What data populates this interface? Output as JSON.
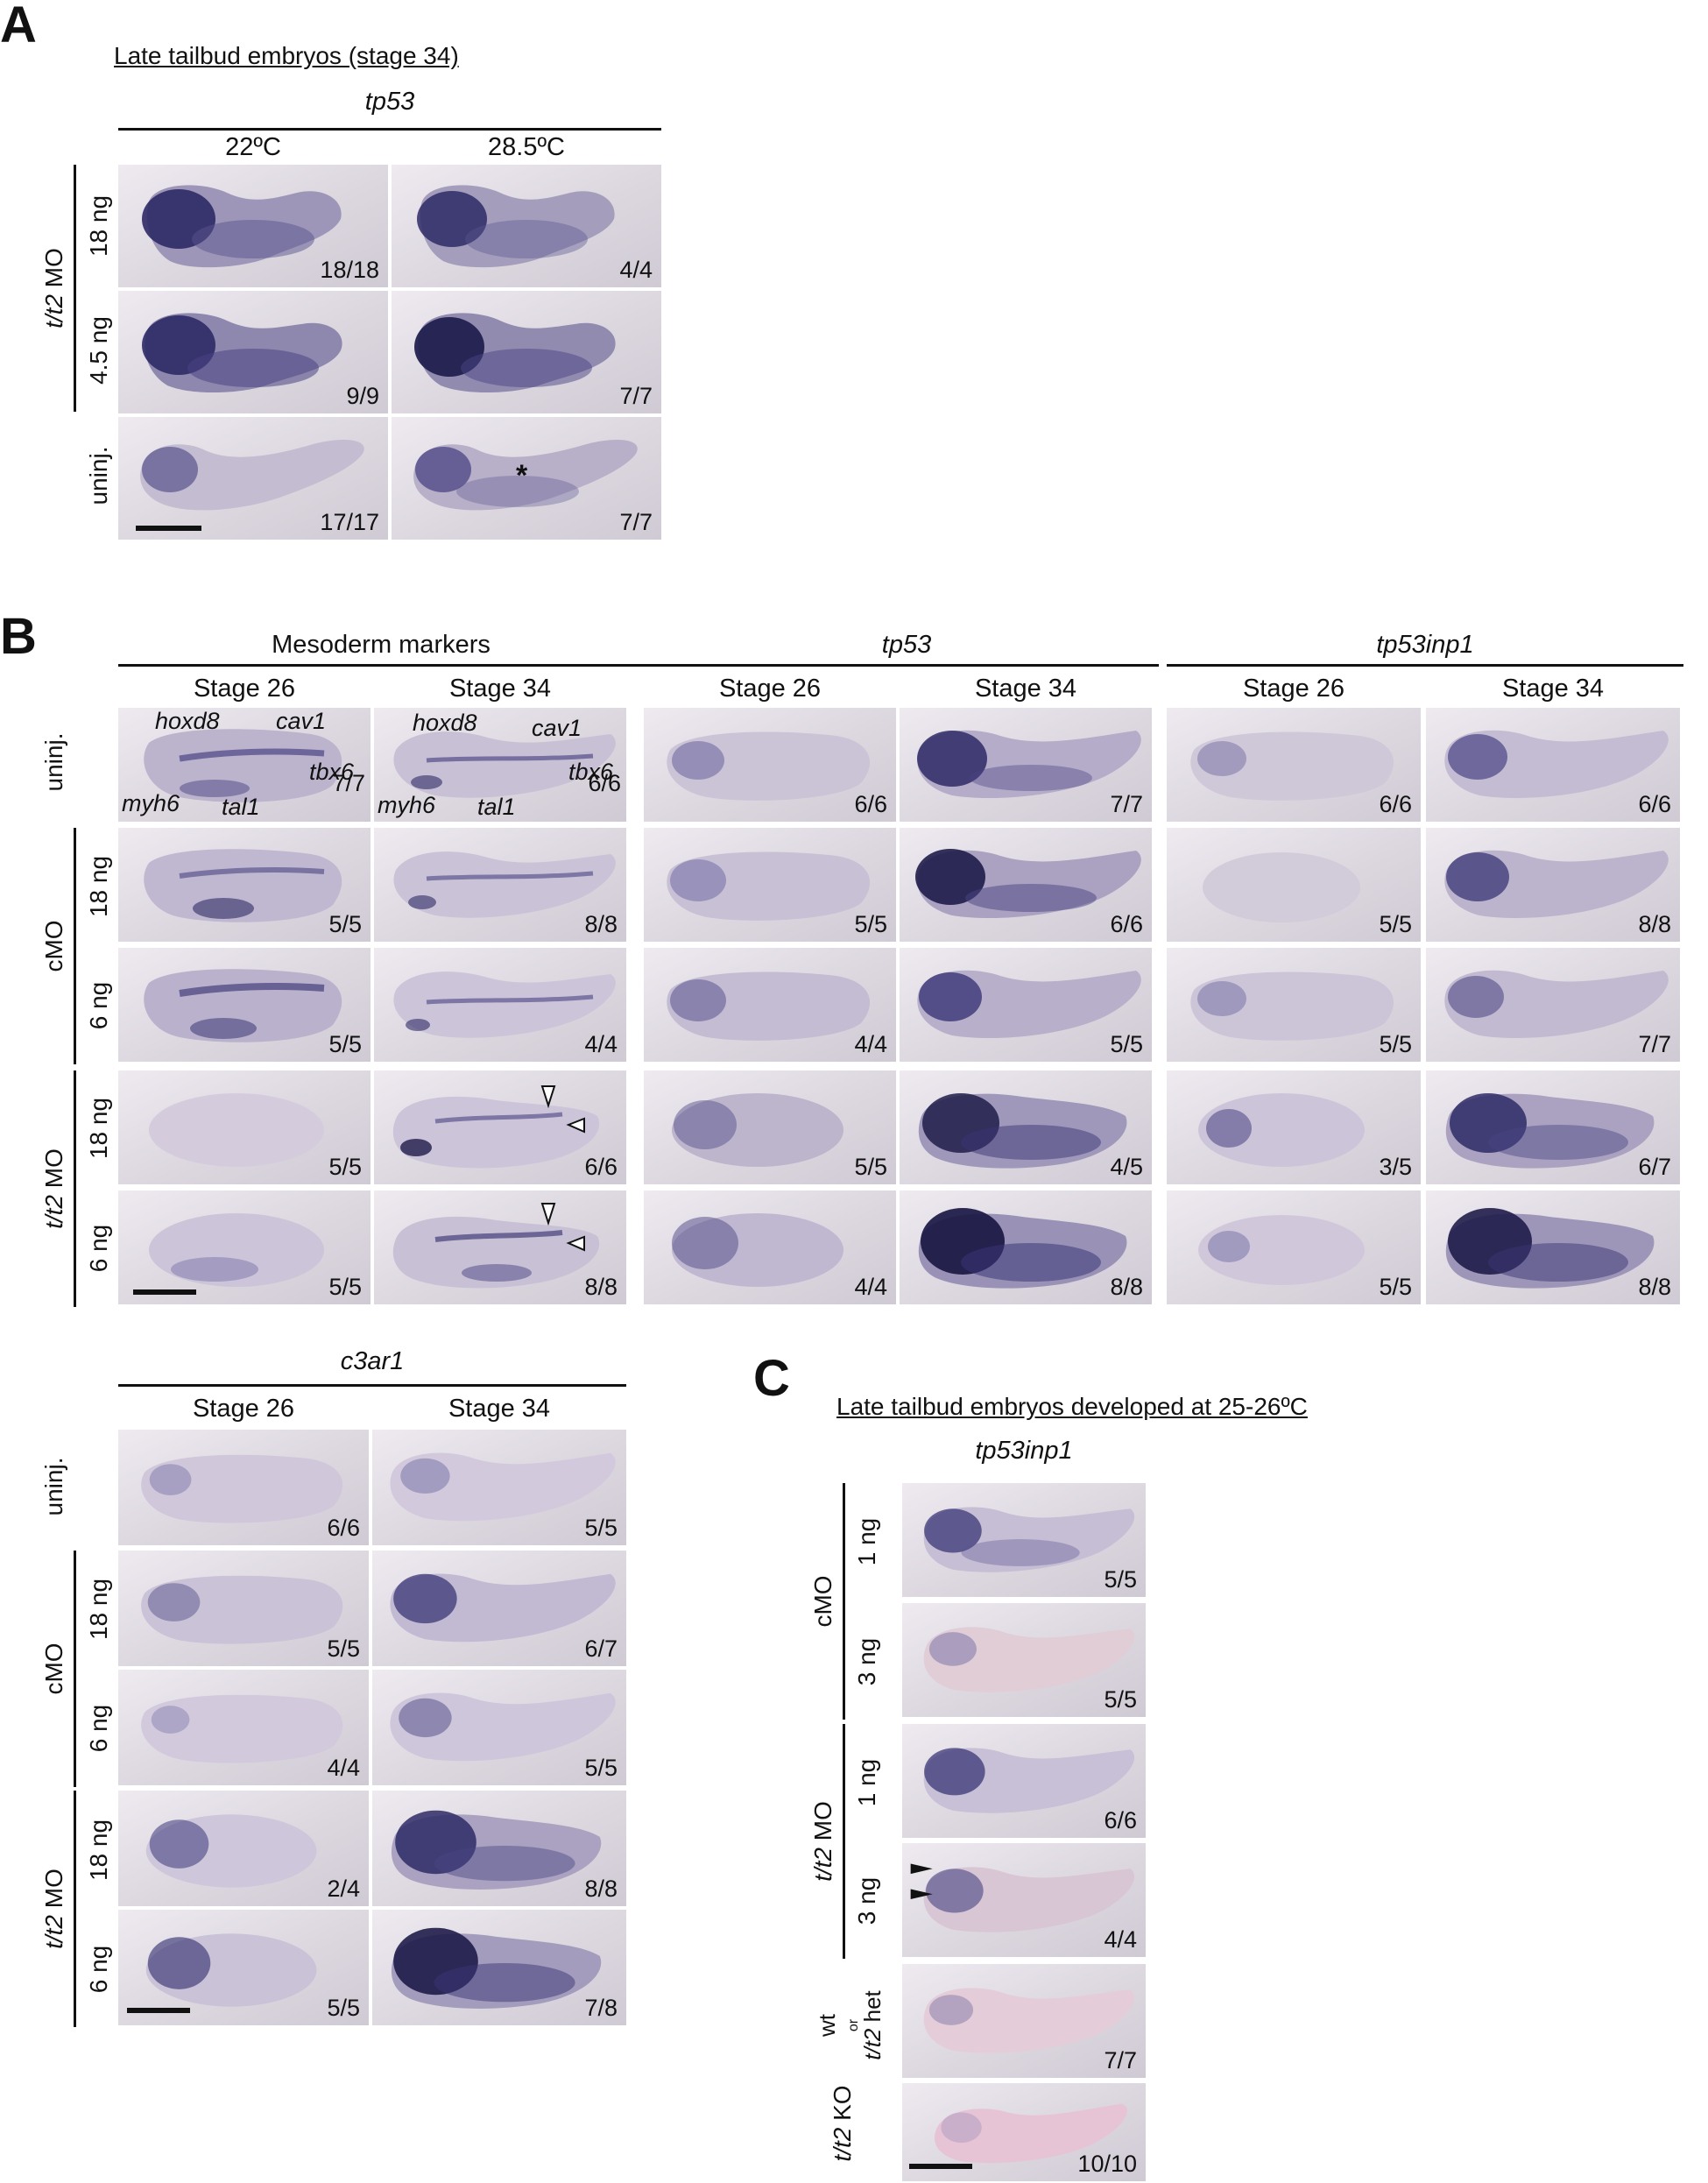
{
  "panel_a": {
    "label": "A",
    "title": "Late tailbud embryos (stage 34)",
    "gene": "tp53",
    "columns": [
      "22ºC",
      "28.5ºC"
    ],
    "group_label_gene": "t/t2",
    "group_label_suffix": " MO",
    "rows": [
      {
        "label": "18 ng",
        "ratios": [
          "18/18",
          "4/4"
        ]
      },
      {
        "label": "4.5 ng",
        "ratios": [
          "9/9",
          "7/7"
        ]
      },
      {
        "label": "uninj.",
        "ratios": [
          "17/17",
          "7/7"
        ]
      }
    ],
    "asterisk": "*"
  },
  "panel_b": {
    "label": "B",
    "groups": [
      {
        "title": "Mesoderm markers",
        "italic": false
      },
      {
        "title": "tp53",
        "italic": true
      },
      {
        "title": "tp53inp1",
        "italic": true
      }
    ],
    "stages": [
      "Stage 26",
      "Stage 34"
    ],
    "row_labels": [
      "uninj.",
      "18 ng",
      "6 ng",
      "18 ng",
      "6 ng"
    ],
    "group_cmo": "cMO",
    "group_tmo_gene": "t/t2",
    "group_tmo_suffix": " MO",
    "markers": [
      "hoxd8",
      "cav1",
      "tbx6",
      "myh6",
      "tal1"
    ],
    "ratios": [
      [
        "7/7",
        "6/6",
        "6/6",
        "7/7",
        "6/6",
        "6/6"
      ],
      [
        "5/5",
        "8/8",
        "5/5",
        "6/6",
        "5/5",
        "8/8"
      ],
      [
        "5/5",
        "4/4",
        "4/4",
        "5/5",
        "5/5",
        "7/7"
      ],
      [
        "5/5",
        "6/6",
        "5/5",
        "4/5",
        "3/5",
        "6/7"
      ],
      [
        "5/5",
        "8/8",
        "4/4",
        "8/8",
        "5/5",
        "8/8"
      ]
    ]
  },
  "panel_b2": {
    "gene": "c3ar1",
    "stages": [
      "Stage 26",
      "Stage 34"
    ],
    "row_labels": [
      "uninj.",
      "18 ng",
      "6 ng",
      "18 ng",
      "6 ng"
    ],
    "group_cmo": "cMO",
    "group_tmo_gene": "t/t2",
    "group_tmo_suffix": " MO",
    "ratios": [
      [
        "6/6",
        "5/5"
      ],
      [
        "5/5",
        "6/7"
      ],
      [
        "4/4",
        "5/5"
      ],
      [
        "2/4",
        "8/8"
      ],
      [
        "5/5",
        "7/8"
      ]
    ]
  },
  "panel_c": {
    "label": "C",
    "title": "Late tailbud embryos developed at 25-26ºC",
    "gene": "tp53inp1",
    "group_cmo": "cMO",
    "group_tmo_gene": "t/t2",
    "group_tmo_suffix": " MO",
    "row_labels": [
      "1 ng",
      "3 ng",
      "1 ng",
      "3 ng"
    ],
    "ratios": [
      "5/5",
      "5/5",
      "6/6",
      "4/4",
      "7/7",
      "10/10"
    ],
    "wt_label": "wt",
    "or_label": "or",
    "het_gene": "t/t2",
    "het_suffix": " het",
    "ko_gene": "t/t2",
    "ko_suffix": " KO"
  },
  "colors": {
    "stain": "#2e2a66",
    "background": "#dcd7df",
    "embryo": "#cfc6d2"
  }
}
